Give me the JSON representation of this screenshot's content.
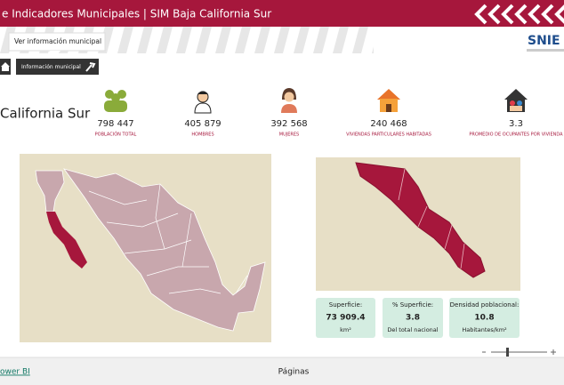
{
  "header": {
    "title": "e Indicadores Municipales | SIM Baja California Sur",
    "logo": "SNIE"
  },
  "tooltip": "Ver información municipal",
  "nav": {
    "button": "Información municipal"
  },
  "region": "California Sur",
  "stats": [
    {
      "value": "798 447",
      "label": "POBLACIÓN TOTAL"
    },
    {
      "value": "405 879",
      "label": "HOMBRES"
    },
    {
      "value": "392 568",
      "label": "MUJERES"
    },
    {
      "value": "240 468",
      "label": "VIVIENDAS PARTICULARES HABITADAS"
    },
    {
      "value": "3.3",
      "label": "PROMEDIO DE OCUPANTES POR VIVIENDA"
    }
  ],
  "cards": [
    {
      "title": "Superficie:",
      "value": "73 909.4",
      "unit": "km²"
    },
    {
      "title": "% Superficie:",
      "value": "3.8",
      "unit": "Del total nacional"
    },
    {
      "title": "Densidad poblacional:",
      "value": "10.8",
      "unit": "Habitantes/km²"
    }
  ],
  "footer": {
    "link": "ower BI",
    "pages": "Páginas"
  }
}
